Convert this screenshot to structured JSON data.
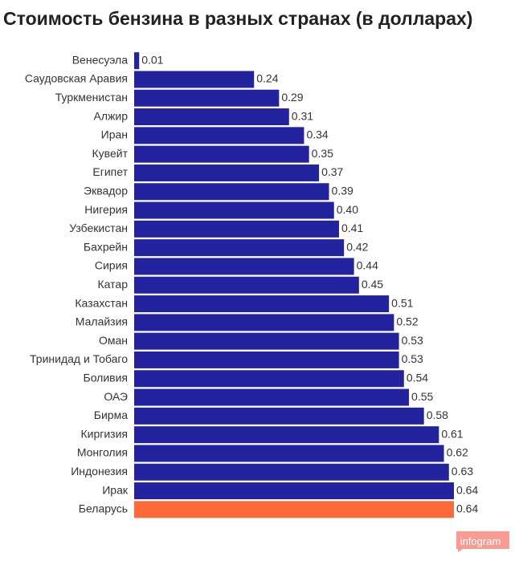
{
  "title": "Стоимость бензина в разных странах (в долларах)",
  "watermark": "infogram",
  "colors": {
    "bar": "#2323a0",
    "highlight": "#fb6a38",
    "watermark_bg": "#f79b93"
  },
  "chart_data": {
    "type": "bar",
    "orientation": "horizontal",
    "title": "Стоимость бензина в разных странах (в долларах)",
    "categories": [
      "Венесуэла",
      "Саудовская Аравия",
      "Туркменистан",
      "Алжир",
      "Иран",
      "Кувейт",
      "Египет",
      "Эквадор",
      "Нигерия",
      "Узбекистан",
      "Бахрейн",
      "Сирия",
      "Катар",
      "Казахстан",
      "Малайзия",
      "Оман",
      "Тринидад и Тобаго",
      "Боливия",
      "ОАЭ",
      "Бирма",
      "Киргизия",
      "Монголия",
      "Индонезия",
      "Ирак",
      "Беларусь"
    ],
    "values": [
      0.01,
      0.24,
      0.29,
      0.31,
      0.34,
      0.35,
      0.37,
      0.39,
      0.4,
      0.41,
      0.42,
      0.44,
      0.45,
      0.51,
      0.52,
      0.53,
      0.53,
      0.54,
      0.55,
      0.58,
      0.61,
      0.62,
      0.63,
      0.64,
      0.64
    ],
    "value_labels": [
      "0.01",
      "0.24",
      "0.29",
      "0.31",
      "0.34",
      "0.35",
      "0.37",
      "0.39",
      "0.40",
      "0.41",
      "0.42",
      "0.44",
      "0.45",
      "0.51",
      "0.52",
      "0.53",
      "0.53",
      "0.54",
      "0.55",
      "0.58",
      "0.61",
      "0.62",
      "0.63",
      "0.64",
      "0.64"
    ],
    "highlight_category": "Беларусь",
    "xlim": [
      0,
      0.64
    ],
    "grid": false,
    "legend": "none"
  }
}
